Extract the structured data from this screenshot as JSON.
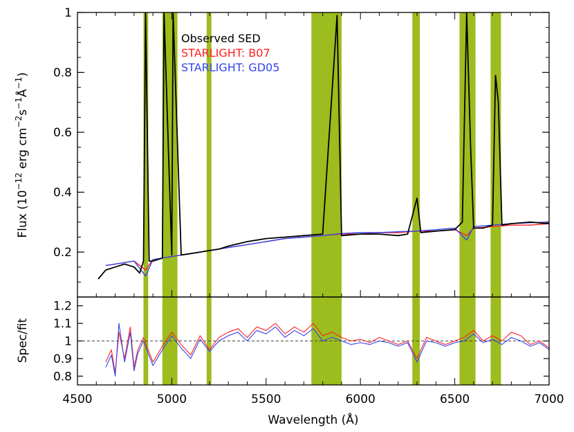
{
  "chart_data": [
    {
      "type": "line",
      "panel": "top",
      "ylabel_parts": [
        "Flux (10",
        "−12",
        " erg cm",
        "−2",
        "s",
        "−1",
        "Å",
        "−1",
        ")"
      ],
      "xlim": [
        4500,
        7000
      ],
      "ylim": [
        0.05,
        1.0
      ],
      "yticks": [
        0.2,
        0.4,
        0.6,
        0.8,
        1.0
      ],
      "ytick_labels": [
        "0.2",
        "0.4",
        "0.6",
        "0.8",
        "1"
      ],
      "masked_regions": [
        [
          4850,
          4875
        ],
        [
          4950,
          5030
        ],
        [
          5185,
          5210
        ],
        [
          5740,
          5900
        ],
        [
          6275,
          6315
        ],
        [
          6525,
          6610
        ],
        [
          6690,
          6745
        ]
      ],
      "legend": [
        {
          "label": "Observed SED",
          "color": "#000000"
        },
        {
          "label": "STARLIGHT: B07",
          "color": "#ff2020"
        },
        {
          "label": "STARLIGHT: GD05",
          "color": "#3344ee"
        }
      ],
      "series": [
        {
          "name": "Observed SED",
          "color": "#000000",
          "x": [
            4610,
            4650,
            4700,
            4750,
            4800,
            4830,
            4850,
            4861,
            4880,
            4900,
            4950,
            4959,
            5000,
            5007,
            5050,
            5100,
            5150,
            5200,
            5250,
            5300,
            5400,
            5500,
            5600,
            5700,
            5800,
            5876,
            5900,
            6000,
            6100,
            6200,
            6250,
            6300,
            6320,
            6400,
            6500,
            6540,
            6563,
            6584,
            6600,
            6650,
            6700,
            6716,
            6731,
            6750,
            6800,
            6900,
            7000
          ],
          "y": [
            0.11,
            0.14,
            0.15,
            0.16,
            0.15,
            0.13,
            0.17,
            1.0,
            0.17,
            0.17,
            0.18,
            1.0,
            0.19,
            1.0,
            0.19,
            0.195,
            0.2,
            0.205,
            0.21,
            0.22,
            0.235,
            0.245,
            0.25,
            0.255,
            0.26,
            0.99,
            0.255,
            0.26,
            0.26,
            0.255,
            0.26,
            0.38,
            0.265,
            0.27,
            0.275,
            0.3,
            1.0,
            0.55,
            0.28,
            0.28,
            0.29,
            0.79,
            0.7,
            0.29,
            0.295,
            0.3,
            0.295
          ]
        },
        {
          "name": "STARLIGHT: B07",
          "color": "#ff2020",
          "x": [
            4650,
            4700,
            4800,
            4861,
            4900,
            5000,
            5100,
            5200,
            5300,
            5400,
            5500,
            5600,
            5700,
            5800,
            5900,
            6000,
            6100,
            6200,
            6300,
            6400,
            6500,
            6563,
            6600,
            6700,
            6800,
            6900,
            7000
          ],
          "y": [
            0.155,
            0.16,
            0.17,
            0.14,
            0.175,
            0.185,
            0.195,
            0.205,
            0.215,
            0.225,
            0.235,
            0.245,
            0.25,
            0.255,
            0.26,
            0.26,
            0.265,
            0.265,
            0.27,
            0.27,
            0.275,
            0.255,
            0.28,
            0.285,
            0.29,
            0.29,
            0.295
          ]
        },
        {
          "name": "STARLIGHT: GD05",
          "color": "#3344ee",
          "x": [
            4650,
            4700,
            4800,
            4861,
            4900,
            5000,
            5100,
            5200,
            5300,
            5400,
            5500,
            5600,
            5700,
            5800,
            5900,
            6000,
            6100,
            6200,
            6300,
            6400,
            6500,
            6563,
            6600,
            6700,
            6800,
            6900,
            7000
          ],
          "y": [
            0.155,
            0.16,
            0.17,
            0.12,
            0.175,
            0.185,
            0.195,
            0.205,
            0.215,
            0.225,
            0.235,
            0.245,
            0.25,
            0.255,
            0.262,
            0.265,
            0.265,
            0.268,
            0.27,
            0.275,
            0.28,
            0.24,
            0.285,
            0.29,
            0.295,
            0.298,
            0.3
          ]
        }
      ]
    },
    {
      "type": "line",
      "panel": "bottom",
      "xlabel": "Wavelength (Å)",
      "ylabel": "Spec/fit",
      "xlim": [
        4500,
        7000
      ],
      "ylim": [
        0.75,
        1.25
      ],
      "xticks": [
        4500,
        5000,
        5500,
        6000,
        6500,
        7000
      ],
      "xtick_labels": [
        "4500",
        "5000",
        "5500",
        "6000",
        "6500",
        "7000"
      ],
      "yticks": [
        0.8,
        0.9,
        1.0,
        1.1,
        1.2
      ],
      "ytick_labels": [
        "0.8",
        "0.9",
        "1",
        "1.1",
        "1.2"
      ],
      "reference_line": 1.0,
      "series": [
        {
          "name": "B07 ratio",
          "color": "#ff2020",
          "x": [
            4650,
            4680,
            4700,
            4720,
            4750,
            4780,
            4800,
            4820,
            4850,
            4900,
            4950,
            5000,
            5050,
            5100,
            5150,
            5200,
            5250,
            5300,
            5350,
            5400,
            5450,
            5500,
            5550,
            5600,
            5650,
            5700,
            5750,
            5800,
            5850,
            5900,
            5950,
            6000,
            6050,
            6100,
            6150,
            6200,
            6250,
            6300,
            6350,
            6400,
            6450,
            6500,
            6550,
            6600,
            6650,
            6700,
            6750,
            6800,
            6850,
            6900,
            6950,
            7000
          ],
          "y": [
            0.88,
            0.95,
            0.82,
            1.05,
            0.9,
            1.08,
            0.85,
            0.95,
            1.02,
            0.88,
            0.97,
            1.05,
            0.98,
            0.92,
            1.03,
            0.95,
            1.02,
            1.05,
            1.07,
            1.02,
            1.08,
            1.06,
            1.1,
            1.04,
            1.08,
            1.05,
            1.1,
            1.03,
            1.05,
            1.02,
            1.0,
            1.01,
            0.99,
            1.02,
            1.0,
            0.98,
            1.0,
            0.9,
            1.02,
            1.0,
            0.98,
            1.0,
            1.02,
            1.06,
            1.0,
            1.03,
            1.0,
            1.05,
            1.03,
            0.98,
            1.0,
            0.96
          ]
        },
        {
          "name": "GD05 ratio",
          "color": "#3344ee",
          "x": [
            4650,
            4680,
            4700,
            4720,
            4750,
            4780,
            4800,
            4820,
            4850,
            4900,
            4950,
            5000,
            5050,
            5100,
            5150,
            5200,
            5250,
            5300,
            5350,
            5400,
            5450,
            5500,
            5550,
            5600,
            5650,
            5700,
            5750,
            5800,
            5850,
            5900,
            5950,
            6000,
            6050,
            6100,
            6150,
            6200,
            6250,
            6300,
            6350,
            6400,
            6450,
            6500,
            6550,
            6600,
            6650,
            6700,
            6750,
            6800,
            6850,
            6900,
            6950,
            7000
          ],
          "y": [
            0.85,
            0.92,
            0.8,
            1.1,
            0.88,
            1.05,
            0.83,
            0.93,
            1.0,
            0.86,
            0.95,
            1.03,
            0.96,
            0.9,
            1.01,
            0.94,
            1.0,
            1.03,
            1.05,
            1.0,
            1.06,
            1.04,
            1.08,
            1.02,
            1.06,
            1.03,
            1.07,
            1.0,
            1.02,
            1.0,
            0.98,
            0.99,
            0.98,
            1.0,
            0.99,
            0.97,
            0.99,
            0.88,
            1.0,
            0.99,
            0.97,
            0.99,
            1.0,
            1.04,
            0.99,
            1.01,
            0.98,
            1.02,
            1.0,
            0.97,
            0.99,
            0.95
          ]
        }
      ]
    }
  ]
}
